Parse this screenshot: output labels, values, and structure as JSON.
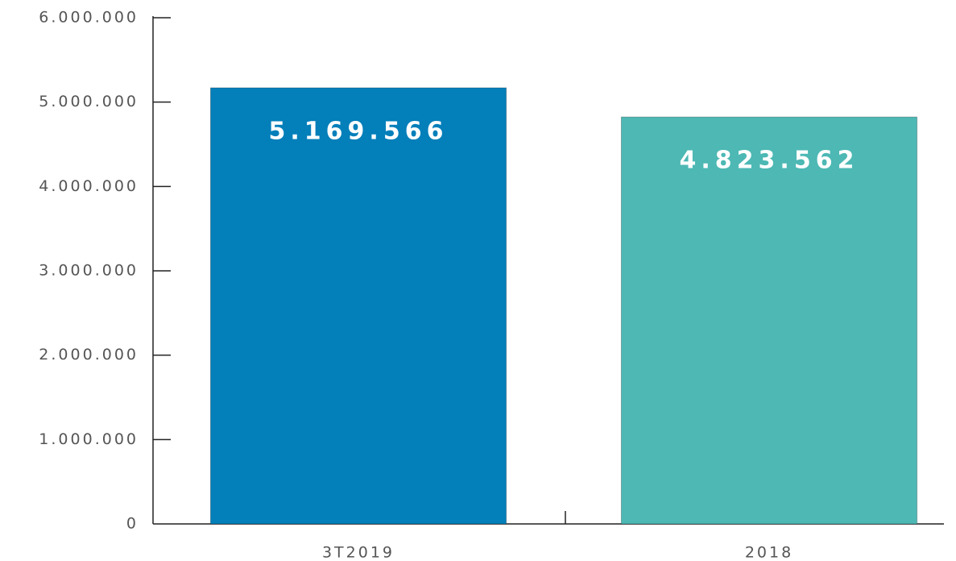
{
  "chart_data": {
    "type": "bar",
    "categories": [
      "3T2019",
      "2018"
    ],
    "values": [
      5169566,
      4823562
    ],
    "value_labels": [
      "5.169.566",
      "4.823.562"
    ],
    "colors": [
      "#037fba",
      "#4db8b4"
    ],
    "ylim": [
      0,
      6000000
    ],
    "yticks": [
      0,
      {
        "value": 1000000,
        "label": "1.000.000"
      },
      {
        "value": 2000000,
        "label": "2.000.000"
      },
      {
        "value": 3000000,
        "label": "3.000.000"
      },
      {
        "value": 4000000,
        "label": "4.000.000"
      },
      {
        "value": 5000000,
        "label": "5.000.000"
      },
      {
        "value": 6000000,
        "label": "6.000.000"
      }
    ],
    "grid": false
  }
}
